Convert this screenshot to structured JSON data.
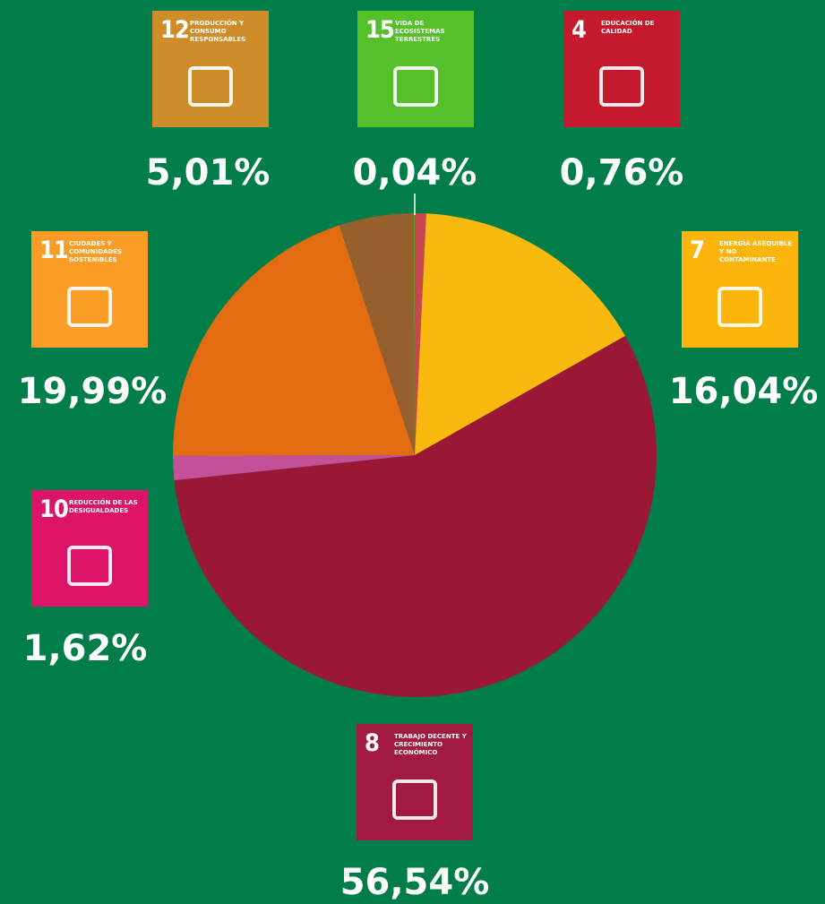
{
  "chart_data": {
    "type": "pie",
    "categories": [
      "EDUCACIÓN DE CALIDAD",
      "ENERGÍA ASEQUIBLE Y NO CONTAMINANTE",
      "TRABAJO DECENTE Y CRECIMIENTO ECONÓMICO",
      "REDUCCIÓN DE LAS DESIGUALDADES",
      "CIUDADES Y COMUNIDADES SOSTENIBLES",
      "PRODUCCIÓN Y CONSUMO RESPONSABLES",
      "VIDA DE ECOSISTEMAS TERRESTRES"
    ],
    "goal_numbers": [
      "4",
      "7",
      "8",
      "10",
      "11",
      "12",
      "15"
    ],
    "values": [
      0.76,
      16.04,
      56.54,
      1.62,
      19.99,
      5.01,
      0.04
    ],
    "value_labels": [
      "0,76%",
      "16,04%",
      "56,54%",
      "1,62%",
      "19,99%",
      "5,01%",
      "0,04%"
    ],
    "colors": [
      "#c8474d",
      "#f9b90f",
      "#9a1736",
      "#c4509a",
      "#e26c0f",
      "#96602e",
      "#56c02b"
    ],
    "icon_colors": [
      "#c5192d",
      "#fcb50d",
      "#a21942",
      "#dd1367",
      "#f99d26",
      "#cf8d2a",
      "#56c02b"
    ]
  }
}
